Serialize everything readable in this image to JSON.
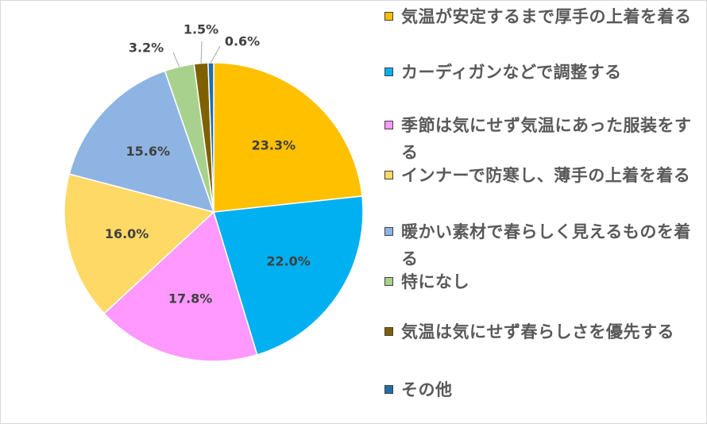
{
  "chart_data": {
    "type": "pie",
    "title": "",
    "legend_position": "right",
    "slices": [
      {
        "label": "気温が安定するまで厚手の上着を着る",
        "value": 23.3,
        "value_label": "23.3%",
        "color": "#ffc000"
      },
      {
        "label": "カーディガンなどで調整する",
        "value": 22.0,
        "value_label": "22.0%",
        "color": "#00b0f0"
      },
      {
        "label": "季節は気にせず気温にあった服装をする",
        "value": 17.8,
        "value_label": "17.8%",
        "color": "#ff99ff"
      },
      {
        "label": "インナーで防寒し、薄手の上着を着る",
        "value": 16.0,
        "value_label": "16.0%",
        "color": "#ffd966"
      },
      {
        "label": "暖かい素材で春らしく見えるものを着る",
        "value": 15.6,
        "value_label": "15.6%",
        "color": "#8eb4e3"
      },
      {
        "label": "特になし",
        "value": 3.2,
        "value_label": "3.2%",
        "color": "#a9d18e"
      },
      {
        "label": "気温は気にせず春らしさを優先する",
        "value": 1.5,
        "value_label": "1.5%",
        "color": "#7f6000"
      },
      {
        "label": "その他",
        "value": 0.6,
        "value_label": "0.6%",
        "color": "#1f6fa8"
      }
    ]
  }
}
